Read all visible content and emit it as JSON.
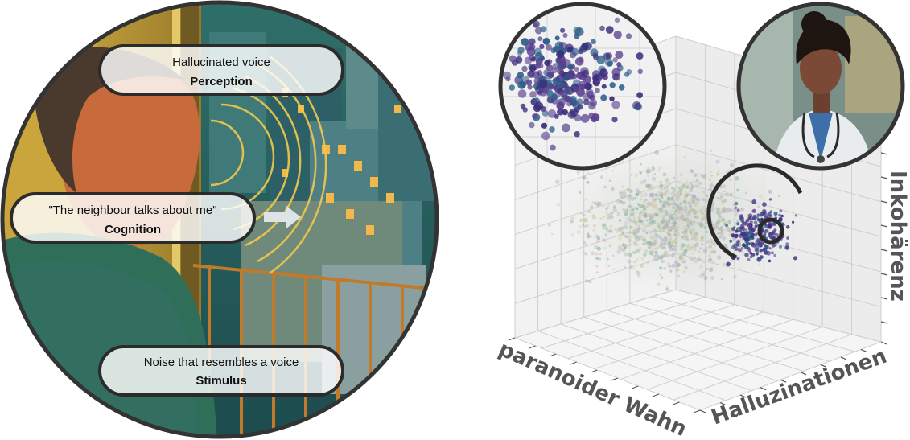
{
  "left_panel": {
    "perception": {
      "line1": "Hallucinated voice",
      "line2": "Perception"
    },
    "cognition": {
      "line1": "\"The neighbour talks about me\"",
      "line2": "Cognition"
    },
    "stimulus": {
      "line1": "Noise that resembles a voice",
      "line2": "Stimulus"
    }
  },
  "right_panel": {
    "axes": {
      "x_label": "paranoider Wahn",
      "y_label": "Halluzinationen",
      "z_label": "Inkohärenz"
    },
    "point_cloud": {
      "colors": [
        "#3a2d7a",
        "#5a3f8f",
        "#2f5f8a",
        "#8fb0a0",
        "#c8c29a",
        "#b8a8c8"
      ]
    }
  }
}
